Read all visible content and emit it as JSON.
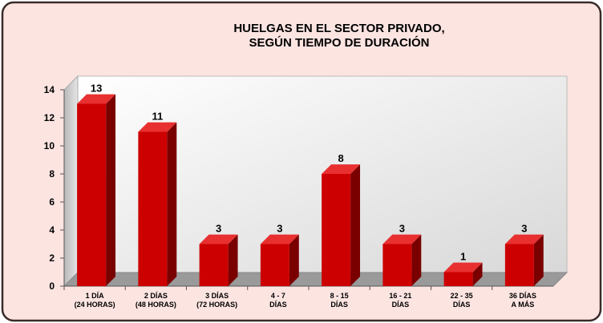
{
  "chart_data": {
    "type": "bar3d",
    "title": [
      "HUELGAS EN EL SECTOR PRIVADO,",
      "SEGÚN TIEMPO DE DURACIÓN"
    ],
    "categories": [
      [
        "1 DÍA",
        "(24 HORAS)"
      ],
      [
        "2 DÍAS",
        "(48 HORAS)"
      ],
      [
        "3 DÍAS",
        "(72 HORAS)"
      ],
      [
        "4 - 7",
        "DÍAS"
      ],
      [
        "8 - 15",
        "DÍAS"
      ],
      [
        "16 - 21",
        "DÍAS"
      ],
      [
        "22 - 35",
        "DÍAS"
      ],
      [
        "36  DÍAS",
        "A MÁS"
      ]
    ],
    "values": [
      13,
      11,
      3,
      3,
      8,
      3,
      1,
      3
    ],
    "color": "#cc0000",
    "ylim": [
      0,
      14
    ],
    "yticks": [
      0,
      2,
      4,
      6,
      8,
      10,
      12,
      14
    ],
    "grid": false
  }
}
